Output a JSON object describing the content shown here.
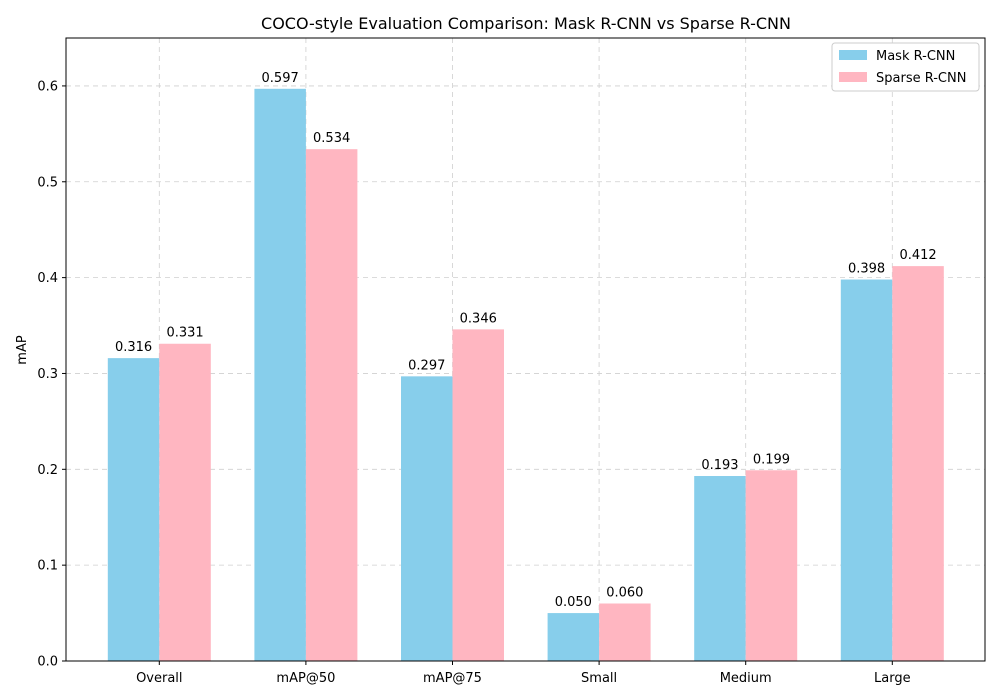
{
  "chart_data": {
    "type": "bar",
    "title": "COCO-style Evaluation Comparison: Mask R-CNN vs Sparse R-CNN",
    "xlabel": "",
    "ylabel": "mAP",
    "categories": [
      "Overall",
      "mAP@50",
      "mAP@75",
      "Small",
      "Medium",
      "Large"
    ],
    "series": [
      {
        "name": "Mask R-CNN",
        "color": "#87CEEB",
        "values": [
          0.316,
          0.597,
          0.297,
          0.05,
          0.193,
          0.398
        ],
        "labels": [
          "0.316",
          "0.597",
          "0.297",
          "0.050",
          "0.193",
          "0.398"
        ]
      },
      {
        "name": "Sparse R-CNN",
        "color": "#FFB6C1",
        "values": [
          0.331,
          0.534,
          0.346,
          0.06,
          0.199,
          0.412
        ],
        "labels": [
          "0.331",
          "0.534",
          "0.346",
          "0.060",
          "0.199",
          "0.412"
        ]
      }
    ],
    "ylim": [
      0,
      0.65
    ],
    "yticks": [
      "0.0",
      "0.1",
      "0.2",
      "0.3",
      "0.4",
      "0.5",
      "0.6"
    ],
    "grid": true,
    "legend_position": "top-right"
  }
}
